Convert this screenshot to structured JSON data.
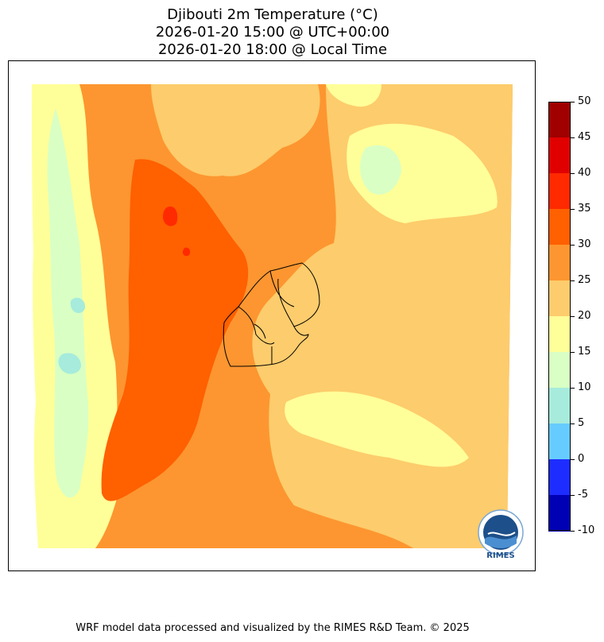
{
  "title": {
    "line1": "Djibouti 2m Temperature (°C)",
    "line2": "2026-01-20 15:00 @ UTC+00:00",
    "line3": "2026-01-20 18:00 @ Local Time"
  },
  "colorbar": {
    "labels": [
      "50",
      "45",
      "40",
      "35",
      "30",
      "25",
      "20",
      "15",
      "10",
      "5",
      "0",
      "-5",
      "-10"
    ],
    "colors": [
      "#a00000",
      "#e00000",
      "#ff2a00",
      "#ff6000",
      "#fd9630",
      "#fdcc6c",
      "#ffff99",
      "#d9ffc4",
      "#a6ebdc",
      "#66ccff",
      "#1e2dff",
      "#0000b5"
    ]
  },
  "logo": {
    "text": "RIMES"
  },
  "footer": "WRF model data processed and visualized by the RIMES R&D Team. © 2025"
}
